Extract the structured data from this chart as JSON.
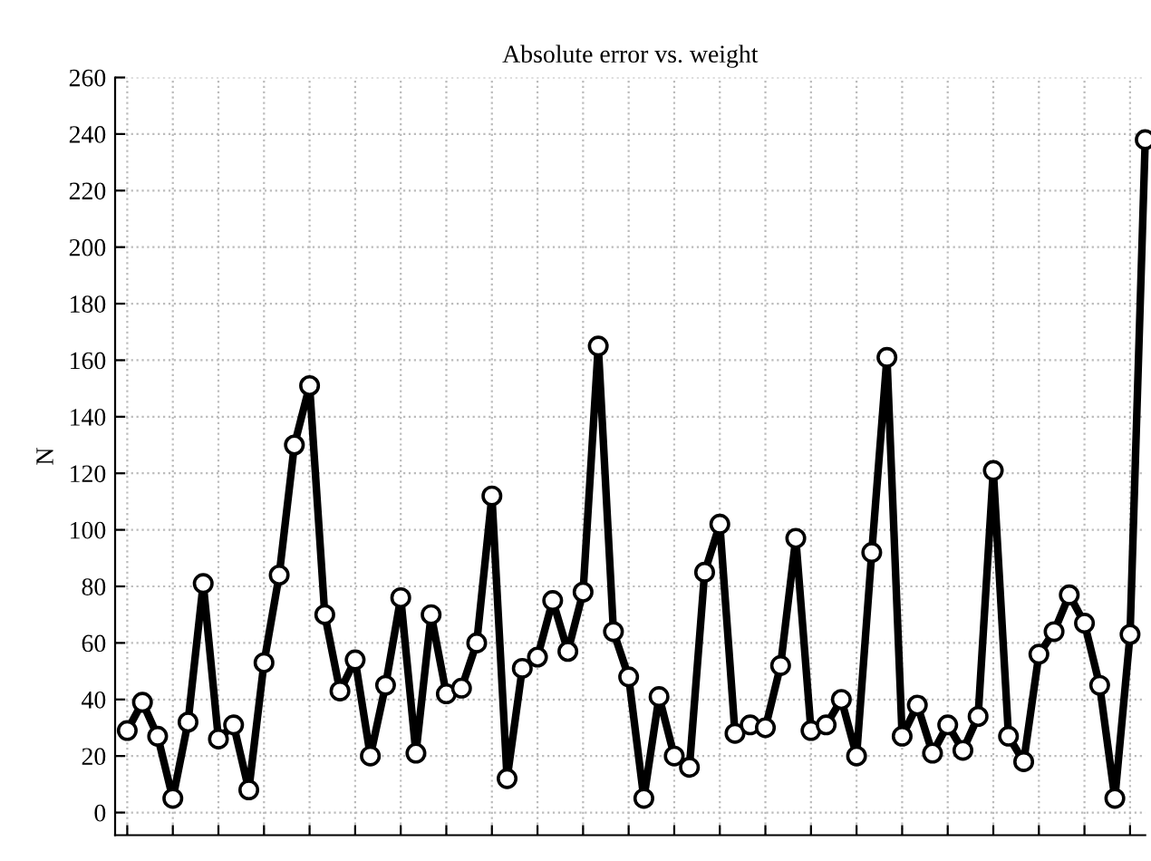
{
  "chart_data": {
    "type": "line",
    "title": "Absolute error vs. weight",
    "ylabel": "N",
    "categories": [
      null,
      null,
      null,
      null,
      null,
      null,
      null,
      null,
      null,
      null,
      null,
      null,
      null,
      null,
      null,
      null,
      null,
      null,
      null,
      null,
      null,
      null,
      null,
      null,
      null,
      null,
      null,
      null,
      null,
      null,
      null,
      null,
      null,
      null,
      null,
      null,
      null,
      null,
      null,
      null,
      null,
      null,
      null,
      null,
      null,
      null,
      null,
      null,
      null,
      null,
      null,
      null,
      null,
      null,
      null,
      null,
      null,
      null,
      null,
      null,
      null,
      null,
      null,
      null,
      null,
      null,
      null,
      null
    ],
    "series": [
      {
        "color": "#000000",
        "values": [
          29,
          39,
          27,
          5,
          32,
          81,
          26,
          31,
          8,
          53,
          84,
          130,
          151,
          70,
          43,
          54,
          20,
          45,
          76,
          21,
          70,
          42,
          44,
          60,
          112,
          12,
          51,
          55,
          75,
          57,
          78,
          165,
          64,
          48,
          5,
          41,
          20,
          16,
          85,
          102,
          28,
          31,
          30,
          52,
          97,
          29,
          31,
          40,
          20,
          92,
          161,
          27,
          38,
          21,
          31,
          22,
          34,
          121,
          27,
          18,
          56,
          64,
          77,
          67,
          45,
          5,
          63,
          238
        ]
      }
    ],
    "ylim": [
      -8,
      260
    ],
    "yticks": [
      0,
      20,
      40,
      60,
      80,
      100,
      120,
      140,
      160,
      180,
      200,
      220,
      240,
      260
    ],
    "grid": true,
    "marker": "circle",
    "line_style": "solid",
    "legend": false
  }
}
